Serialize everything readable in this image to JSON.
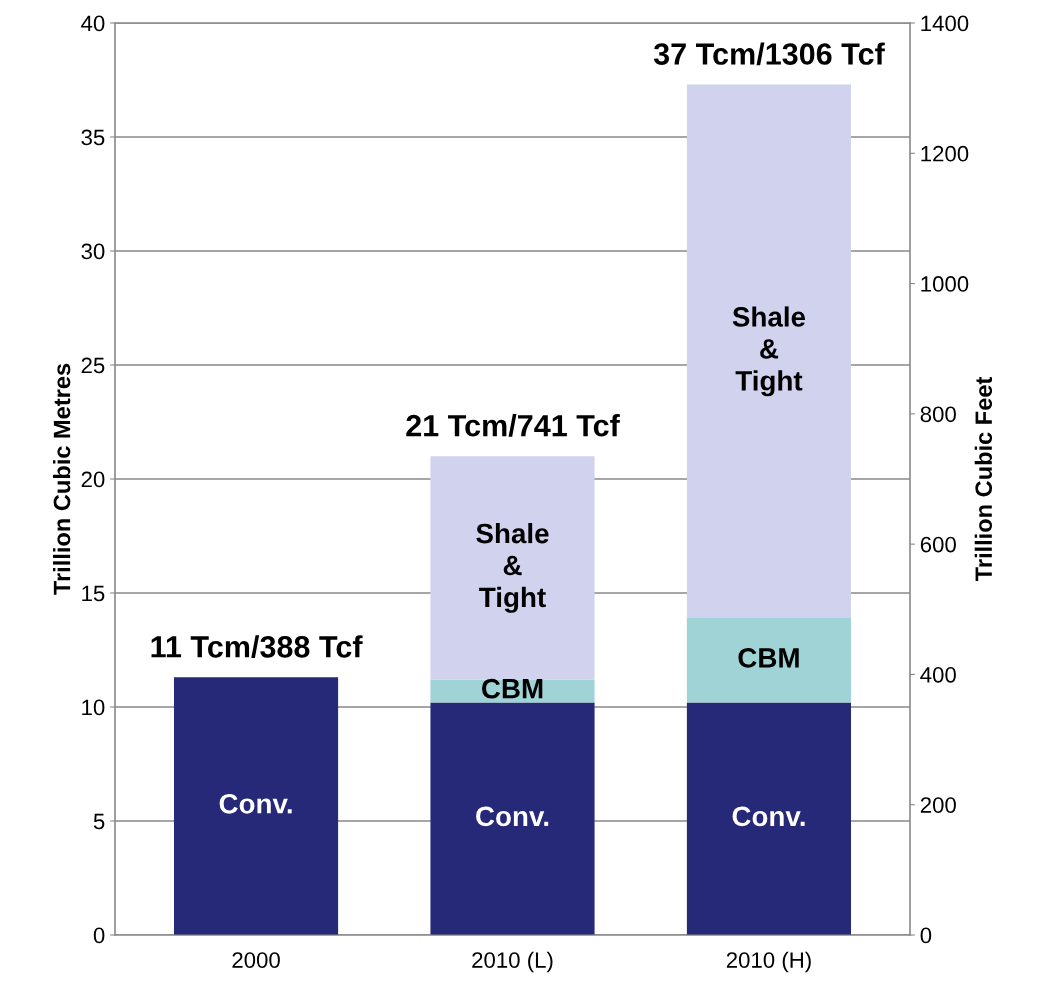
{
  "chart_data": {
    "type": "bar",
    "stacked": true,
    "categories": [
      "2000",
      "2010 (L)",
      "2010 (H)"
    ],
    "series": [
      {
        "name": "Conv.",
        "color": "#262878",
        "values": [
          11.3,
          10.2,
          10.2
        ]
      },
      {
        "name": "CBM",
        "color": "#9fd3d6",
        "values": [
          null,
          1.0,
          3.7
        ]
      },
      {
        "name": "Shale\n&\nTight",
        "color": "#d0d2ee",
        "values": [
          null,
          9.8,
          23.4
        ]
      }
    ],
    "totals": [
      "11 Tcm/388 Tcf",
      "21 Tcm/741 Tcf",
      "37 Tcm/1306 Tcf"
    ],
    "ylabel": "Trillion Cubic Metres",
    "y2label": "Trillion Cubic Feet",
    "ylim": [
      0,
      40
    ],
    "yticks": [
      0,
      5,
      10,
      15,
      20,
      25,
      30,
      35,
      40
    ],
    "y2lim": [
      0,
      1400
    ],
    "y2ticks": [
      0,
      200,
      400,
      600,
      800,
      1000,
      1200,
      1400
    ],
    "grid": "y",
    "legend": false
  }
}
